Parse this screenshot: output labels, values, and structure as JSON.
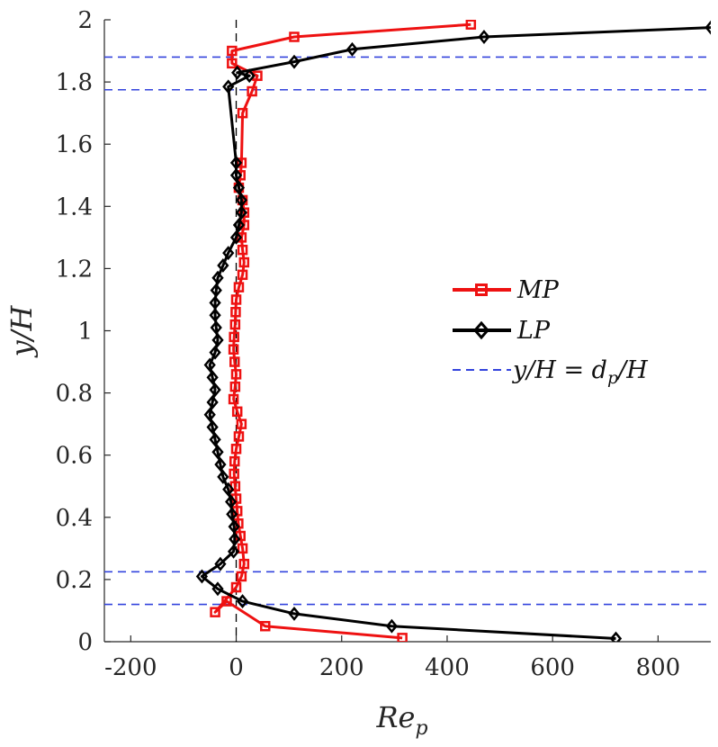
{
  "chart_data": {
    "type": "line",
    "xlabel": "Re_p",
    "xlabel_main": "Re",
    "xlabel_sub": "p",
    "ylabel": "y/H",
    "xlim": [
      -250,
      900
    ],
    "ylim": [
      0,
      2
    ],
    "xticks": [
      -200,
      0,
      200,
      400,
      600,
      800
    ],
    "yticks": [
      0,
      0.2,
      0.4,
      0.6,
      0.8,
      1,
      1.2,
      1.4,
      1.6,
      1.8,
      2
    ],
    "xtick_labels": [
      "-200",
      "0",
      "200",
      "400",
      "600",
      "800"
    ],
    "ytick_labels": [
      "0",
      "0.2",
      "0.4",
      "0.6",
      "0.8",
      "1",
      "1.2",
      "1.4",
      "1.6",
      "1.8",
      "2"
    ],
    "grid": false,
    "legend_position": "right",
    "colors": {
      "mp": "#ee1111",
      "lp": "#000000",
      "dp": "#3344dd",
      "zero": "#000000"
    },
    "series": [
      {
        "name": "MP",
        "legend": "MP",
        "marker": "square",
        "x": [
          315,
          55,
          -18,
          -40,
          0,
          10,
          15,
          12,
          8,
          4,
          2,
          0,
          -2,
          -4,
          -3,
          0,
          5,
          10,
          2,
          -5,
          -2,
          0,
          -3,
          -5,
          -4,
          -2,
          -1,
          0,
          5,
          12,
          15,
          12,
          10,
          15,
          15,
          12,
          5,
          8,
          10,
          12,
          30,
          40,
          -8,
          -8,
          110,
          445
        ],
        "y": [
          0.012,
          0.05,
          0.13,
          0.095,
          0.175,
          0.21,
          0.25,
          0.3,
          0.34,
          0.38,
          0.42,
          0.46,
          0.5,
          0.54,
          0.58,
          0.62,
          0.66,
          0.7,
          0.74,
          0.78,
          0.82,
          0.86,
          0.9,
          0.94,
          0.98,
          1.02,
          1.06,
          1.1,
          1.14,
          1.18,
          1.22,
          1.26,
          1.3,
          1.34,
          1.38,
          1.42,
          1.46,
          1.5,
          1.54,
          1.7,
          1.77,
          1.82,
          1.86,
          1.9,
          1.945,
          1.985
        ]
      },
      {
        "name": "LP",
        "legend": "LP",
        "marker": "diamond",
        "x": [
          720,
          295,
          110,
          12,
          -35,
          -65,
          -30,
          -5,
          -3,
          -4,
          -8,
          -10,
          -15,
          -25,
          -30,
          -35,
          -40,
          -45,
          -50,
          -45,
          -40,
          -45,
          -50,
          -40,
          -35,
          -38,
          -40,
          -40,
          -38,
          -35,
          -25,
          -15,
          0,
          5,
          10,
          10,
          5,
          0,
          0,
          -15,
          25,
          2,
          110,
          220,
          470,
          900
        ],
        "y": [
          0.01,
          0.05,
          0.09,
          0.13,
          0.17,
          0.21,
          0.25,
          0.29,
          0.33,
          0.37,
          0.41,
          0.45,
          0.49,
          0.53,
          0.57,
          0.61,
          0.65,
          0.69,
          0.73,
          0.77,
          0.81,
          0.85,
          0.89,
          0.93,
          0.97,
          1.01,
          1.05,
          1.09,
          1.13,
          1.17,
          1.21,
          1.25,
          1.3,
          1.34,
          1.38,
          1.42,
          1.46,
          1.5,
          1.54,
          1.785,
          1.82,
          1.83,
          1.865,
          1.905,
          1.945,
          1.975
        ]
      }
    ],
    "dp_lines": {
      "legend": "y/H = d_p/H",
      "legend_lhs": "y/H = d",
      "legend_sub": "p",
      "legend_rhs": "/H",
      "y": [
        0.12,
        0.225,
        1.775,
        1.88
      ]
    },
    "zero_line_x": 0
  }
}
